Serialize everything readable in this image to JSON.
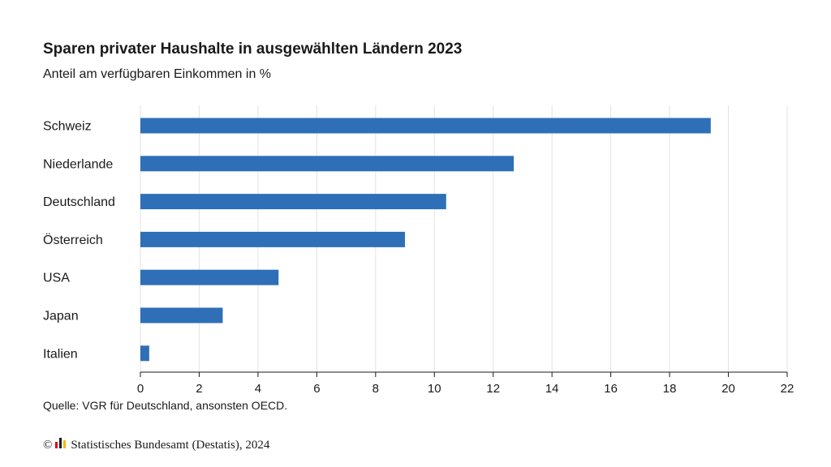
{
  "title": "Sparen privater Haushalte in ausgewählten Ländern 2023",
  "subtitle": "Anteil am verfügbaren Einkommen in %",
  "source": "Quelle: VGR für Deutschland, ansonsten OECD.",
  "footer": {
    "copyright_symbol": "©",
    "text": "Statistisches Bundesamt (Destatis), 2024",
    "logo_icon": "destatis-logo-icon"
  },
  "colors": {
    "bar": "#2e6fb7",
    "grid": "#e3e3e3",
    "axis": "#1a1a1a"
  },
  "chart_data": {
    "type": "bar",
    "orientation": "horizontal",
    "categories": [
      "Schweiz",
      "Niederlande",
      "Deutschland",
      "Österreich",
      "USA",
      "Japan",
      "Italien"
    ],
    "values": [
      19.4,
      12.7,
      10.4,
      9.0,
      4.7,
      2.8,
      0.3
    ],
    "xlim": [
      0,
      22
    ],
    "xticks": [
      "0",
      "2",
      "4",
      "6",
      "8",
      "10",
      "12",
      "14",
      "16",
      "18",
      "20",
      "22"
    ],
    "grid": true,
    "title": "Sparen privater Haushalte in ausgewählten Ländern 2023",
    "subtitle": "Anteil am verfügbaren Einkommen in %"
  }
}
